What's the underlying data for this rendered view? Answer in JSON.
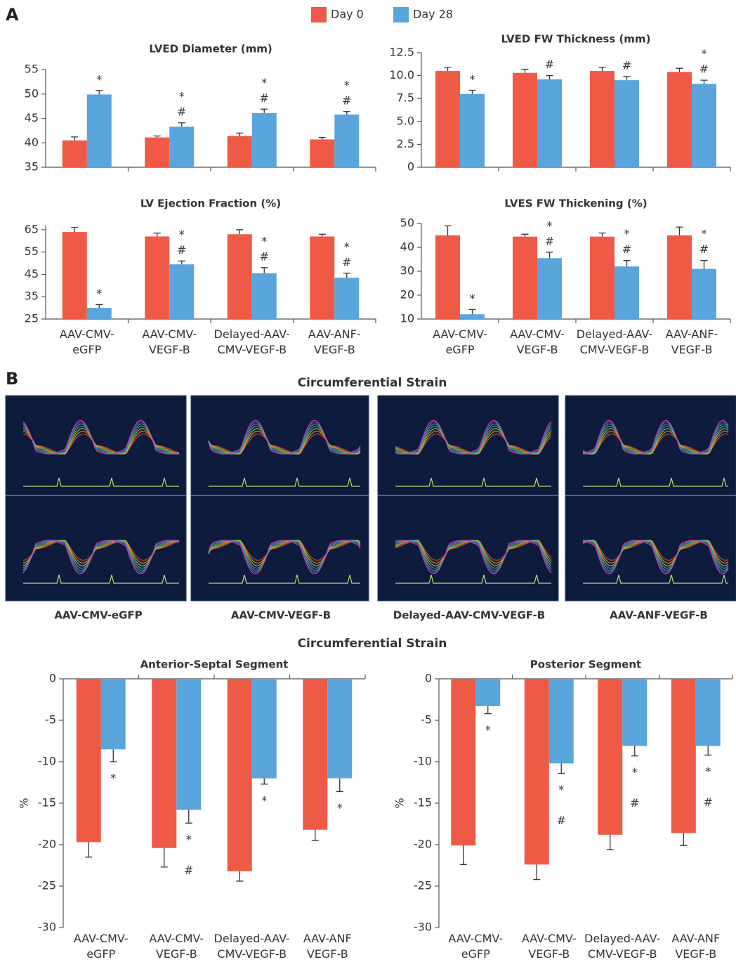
{
  "panels": {
    "a": "A",
    "b": "B"
  },
  "legend": [
    {
      "name": "Day 0",
      "color": "#ee5a45"
    },
    {
      "name": "Day 28",
      "color": "#5aa5dc"
    }
  ],
  "strain_images": {
    "title": "Circumferential Strain",
    "labels": [
      "AAV-CMV-eGFP",
      "AAV-CMV-VEGF-B",
      "Delayed-AAV-CMV-VEGF-B",
      "AAV-ANF-VEGF-B"
    ]
  },
  "strain_charts_title": "Circumferential Strain",
  "chart_data": [
    {
      "type": "bar",
      "title": "LVED Diameter (mm)",
      "categories": [
        null,
        null,
        null,
        null
      ],
      "ylim": [
        35,
        55
      ],
      "yticks": [
        35,
        40,
        45,
        50,
        55
      ],
      "series": [
        {
          "color": "#ee5a45",
          "values": [
            40.5,
            41.1,
            41.4,
            40.7
          ],
          "errors": [
            0.7,
            0.3,
            0.6,
            0.4
          ]
        },
        {
          "color": "#5aa5dc",
          "values": [
            49.9,
            43.3,
            46.1,
            45.8
          ],
          "errors": [
            0.8,
            0.8,
            0.8,
            0.6
          ],
          "annotations": [
            [
              "*"
            ],
            [
              "*",
              "#"
            ],
            [
              "*",
              "#"
            ],
            [
              "*",
              "#"
            ]
          ]
        }
      ]
    },
    {
      "type": "bar",
      "title": "LVED FW Thickness (mm)",
      "categories": [
        null,
        null,
        null,
        null
      ],
      "ylim": [
        0,
        12.5
      ],
      "yticks": [
        0,
        2.5,
        {
          "value": 5,
          "label": "5.0"
        },
        7.5,
        {
          "value": 10,
          "label": "10.0"
        },
        12.5
      ],
      "series": [
        {
          "color": "#ee5a45",
          "values": [
            10.5,
            10.3,
            10.5,
            10.4
          ],
          "errors": [
            0.4,
            0.4,
            0.4,
            0.4
          ]
        },
        {
          "color": "#5aa5dc",
          "values": [
            8.0,
            9.6,
            9.5,
            9.1
          ],
          "errors": [
            0.4,
            0.4,
            0.4,
            0.4
          ],
          "annotations": [
            [
              "*"
            ],
            [
              "#"
            ],
            [
              "#"
            ],
            [
              "*",
              "#"
            ]
          ]
        }
      ]
    },
    {
      "type": "bar",
      "title": "LV Ejection Fraction (%)",
      "categories": [
        "AAV-CMV-\neGFP",
        "AAV-CMV-\nVEGF-B",
        "Delayed-AAV-\nCMV-VEGF-B",
        "AAV-ANF-\nVEGF-B"
      ],
      "ylim": [
        25,
        67
      ],
      "yticks": [
        25,
        35,
        45,
        55,
        65
      ],
      "series": [
        {
          "color": "#ee5a45",
          "values": [
            64,
            62,
            63,
            62
          ],
          "errors": [
            2,
            1.5,
            2,
            1
          ]
        },
        {
          "color": "#5aa5dc",
          "values": [
            30,
            49.5,
            45.5,
            43.5
          ],
          "errors": [
            1.5,
            1.5,
            2.5,
            2
          ],
          "annotations": [
            [
              "*"
            ],
            [
              "*",
              "#"
            ],
            [
              "*",
              "#"
            ],
            [
              "*",
              "#"
            ]
          ]
        }
      ]
    },
    {
      "type": "bar",
      "title": "LVES FW Thickening (%)",
      "categories": [
        "AAV-CMV-\neGFP",
        "AAV-CMV-\nVEGF-B",
        "Delayed-AAV-\nCMV-VEGF-B",
        "AAV-ANF-\nVEGF-B"
      ],
      "ylim": [
        10,
        50
      ],
      "yticks": [
        10,
        20,
        30,
        40,
        50
      ],
      "series": [
        {
          "color": "#ee5a45",
          "values": [
            45,
            44.5,
            44.5,
            45
          ],
          "errors": [
            4,
            1,
            1.5,
            3.5
          ]
        },
        {
          "color": "#5aa5dc",
          "values": [
            12,
            35.5,
            32,
            31
          ],
          "errors": [
            2,
            2.5,
            2.5,
            3.5
          ],
          "annotations": [
            [
              "*"
            ],
            [
              "*",
              "#"
            ],
            [
              "*",
              "#"
            ],
            [
              "*",
              "#"
            ]
          ]
        }
      ]
    },
    {
      "type": "bar",
      "title": "Anterior-Septal Segment",
      "ylabel": "%",
      "categories": [
        "AAV-CMV-\neGFP",
        "AAV-CMV-\nVEGF-B",
        "Delayed-AAV-\nCMV-VEGF-B",
        "AAV-ANF\nVEGF-B"
      ],
      "ylim": [
        -30,
        0
      ],
      "yticks": [
        -30,
        -25,
        -20,
        -15,
        -10,
        -5,
        0
      ],
      "series": [
        {
          "color": "#ee5a45",
          "values": [
            -19.7,
            -20.4,
            -23.2,
            -18.2
          ],
          "errors": [
            1.8,
            2.3,
            1.2,
            1.3
          ]
        },
        {
          "color": "#5aa5dc",
          "values": [
            -8.5,
            -15.8,
            -12,
            -12
          ],
          "errors": [
            1.5,
            1.6,
            0.7,
            1.6
          ],
          "annotations": [
            [
              "*"
            ],
            [
              "*",
              "#"
            ],
            [
              "*"
            ],
            [
              "*"
            ]
          ]
        }
      ]
    },
    {
      "type": "bar",
      "title": "Posterior Segment",
      "ylabel": "%",
      "categories": [
        "AAV-CMV-\neGFP",
        "AAV-CMV-\nVEGF-B",
        "Delayed-AAV-\nCMV-VEGF-B",
        "AAV-ANF\nVEGF-B"
      ],
      "ylim": [
        -30,
        0
      ],
      "yticks": [
        -30,
        -25,
        -20,
        -15,
        -10,
        -5,
        0
      ],
      "series": [
        {
          "color": "#ee5a45",
          "values": [
            -20.1,
            -22.4,
            -18.8,
            -18.6
          ],
          "errors": [
            2.3,
            1.8,
            1.8,
            1.5
          ]
        },
        {
          "color": "#5aa5dc",
          "values": [
            -3.3,
            -10.2,
            -8.1,
            -8.1
          ],
          "errors": [
            0.9,
            1.2,
            1.2,
            1.1
          ],
          "annotations": [
            [
              "*"
            ],
            [
              "*",
              "#"
            ],
            [
              "*",
              "#"
            ],
            [
              "*",
              "#"
            ]
          ]
        }
      ]
    }
  ]
}
